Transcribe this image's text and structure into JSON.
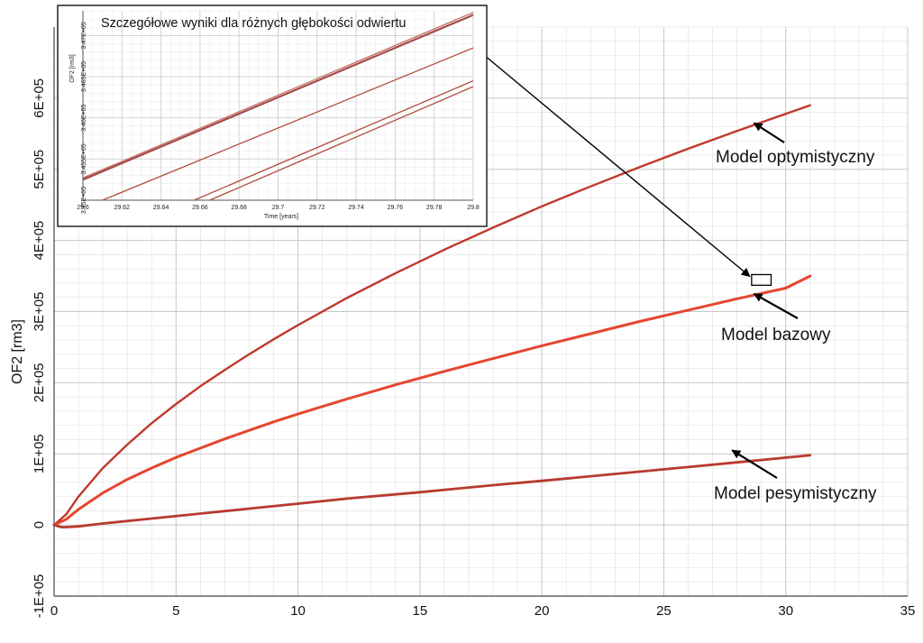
{
  "chart_data": [
    {
      "type": "line",
      "title": "",
      "xlabel": "",
      "ylabel": "OF2 [rm3]",
      "xlim": [
        0,
        35
      ],
      "ylim": [
        -100000,
        700000
      ],
      "x_ticks": [
        0,
        5,
        10,
        15,
        20,
        25,
        30,
        35
      ],
      "x_tick_labels": [
        "0",
        "5",
        "10",
        "15",
        "20",
        "25",
        "30",
        "35"
      ],
      "y_ticks": [
        -100000,
        0,
        100000,
        200000,
        300000,
        400000,
        500000,
        600000
      ],
      "y_tick_labels": [
        "-1E+05",
        "0",
        "1E+05",
        "2E+05",
        "3E+05",
        "4E+05",
        "5E+05",
        "6E+05"
      ],
      "grid": true,
      "series": [
        {
          "name": "Model optymistyczny",
          "color": "#c0392b",
          "x": [
            0,
            0.5,
            1,
            2,
            3,
            4,
            5,
            6,
            7,
            8,
            9,
            10,
            12,
            14,
            16,
            18,
            20,
            22,
            24,
            26,
            28,
            30,
            31
          ],
          "y": [
            0,
            15000,
            40000,
            80000,
            113000,
            143000,
            170000,
            195000,
            218000,
            240000,
            261000,
            281000,
            319000,
            354000,
            387000,
            418000,
            448000,
            476000,
            503000,
            529000,
            554000,
            578000,
            590000
          ]
        },
        {
          "name": "Model bazowy",
          "color": "#e5462f",
          "x": [
            0,
            0.5,
            1,
            2,
            3,
            4,
            5,
            6,
            7,
            8,
            9,
            10,
            12,
            14,
            16,
            18,
            20,
            22,
            24,
            26,
            28,
            30,
            31
          ],
          "y": [
            0,
            8000,
            22000,
            45000,
            64000,
            80000,
            95000,
            108000,
            121000,
            133000,
            145000,
            156000,
            177000,
            197000,
            216000,
            234000,
            252000,
            269000,
            286000,
            302000,
            318000,
            333000,
            350000
          ]
        },
        {
          "name": "Model pesymistyczny",
          "color": "#b83a2e",
          "x": [
            0,
            0.3,
            0.5,
            1,
            2,
            4,
            6,
            8,
            10,
            12,
            15,
            18,
            20,
            24,
            28,
            31
          ],
          "y": [
            0,
            -3000,
            -3000,
            -2000,
            2000,
            9000,
            16000,
            23000,
            30000,
            37000,
            46000,
            56000,
            62000,
            75000,
            88000,
            98000
          ]
        }
      ],
      "annotations": [
        {
          "text": "Model optymistyczny",
          "points_to": [
            28.7,
            565000
          ]
        },
        {
          "text": "Model bazowy",
          "points_to": [
            28.7,
            325000
          ]
        },
        {
          "text": "Model pesymistyczny",
          "points_to": [
            27.8,
            105000
          ]
        }
      ],
      "zoom_box": {
        "x": [
          28.6,
          29.4
        ],
        "y": [
          337000,
          352000
        ]
      }
    },
    {
      "type": "line",
      "title": "Szczegółowe wyniki dla różnych głębokości odwiertu",
      "xlabel": "Time [years]",
      "ylabel": "OF2 [rm3]",
      "xlim": [
        29.6,
        29.8
      ],
      "ylim": [
        345000,
        347300
      ],
      "x_ticks": [
        29.6,
        29.62,
        29.64,
        29.66,
        29.68,
        29.7,
        29.72,
        29.74,
        29.76,
        29.78,
        29.8
      ],
      "x_tick_labels": [
        "29.6",
        "29.62",
        "29.64",
        "29.66",
        "29.68",
        "29.7",
        "29.72",
        "29.74",
        "29.76",
        "29.78",
        "29.8"
      ],
      "y_ticks": [
        345000,
        345500,
        346000,
        346500,
        347000
      ],
      "y_tick_labels": [
        "3.45E+05",
        "3.455E+05",
        "3.46E+05",
        "3.465E+05",
        "3.47E+05"
      ],
      "grid": true,
      "series": [
        {
          "color": "#a34a4a",
          "x": [
            29.6,
            29.8
          ],
          "y": [
            345250,
            347250
          ]
        },
        {
          "color": "#c0665a",
          "x": [
            29.6,
            29.8
          ],
          "y": [
            345270,
            347280
          ]
        },
        {
          "color": "#b34b3f",
          "x": [
            29.61,
            29.8
          ],
          "y": [
            345000,
            346850
          ]
        },
        {
          "color": "#b34b3f",
          "x": [
            29.657,
            29.8
          ],
          "y": [
            345000,
            346450
          ]
        },
        {
          "color": "#b34b3f",
          "x": [
            29.665,
            29.8
          ],
          "y": [
            345000,
            346380
          ]
        }
      ]
    }
  ]
}
